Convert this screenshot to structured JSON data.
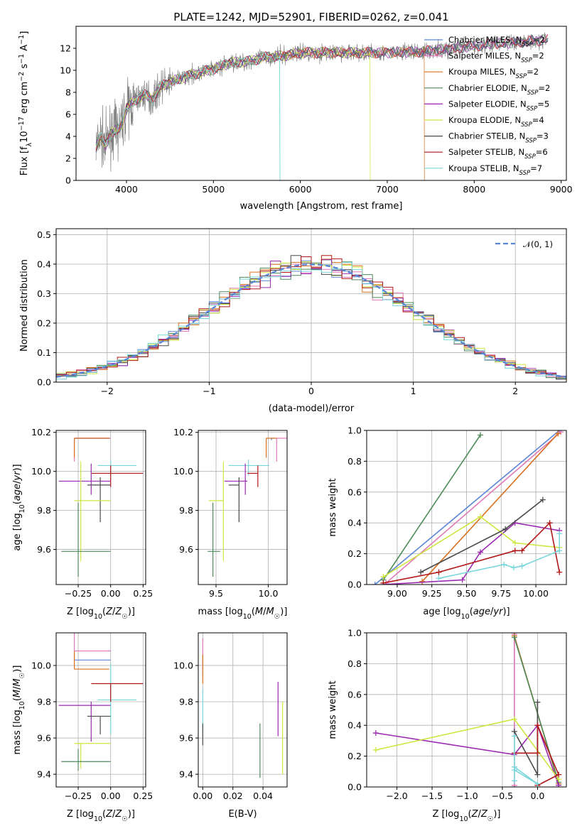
{
  "figure_title": "PLATE=1242, MJD=52901, FIBERID=0262, z=0.041",
  "colors": {
    "Chabrier MILES": "#5b86d6",
    "Salpeter MILES": "#e07ab8",
    "Kroupa MILES": "#d8701e",
    "Chabrier ELODIE": "#4f8a5a",
    "Salpeter ELODIE": "#9a2ab0",
    "Kroupa ELODIE": "#cfe640",
    "Chabrier STELIB": "#4a4a4a",
    "Salpeter STELIB": "#b01818",
    "Kroupa STELIB": "#7ad6da",
    "observed": "#808080",
    "gaussian": "#5b86d6"
  },
  "chart_data": [
    {
      "id": "spectrum",
      "type": "line",
      "title": "PLATE=1242, MJD=52901, FIBERID=0262, z=0.041",
      "xlabel": "wavelength [Angstrom, rest frame]",
      "ylabel": "Flux [f_λ10^{−17} erg cm^{−2} s^{−1} A^{−1}]",
      "xlim": [
        3420,
        9060
      ],
      "ylim": [
        0,
        14
      ],
      "xticks": [
        4000,
        5000,
        6000,
        7000,
        8000,
        9000
      ],
      "yticks": [
        0,
        2,
        4,
        6,
        8,
        10,
        12
      ],
      "grid": false,
      "legend_position": "top-right",
      "legend": [
        {
          "name": "Chabrier MILES, N",
          "sub": "SSP",
          "tail": "=2"
        },
        {
          "name": "Salpeter MILES, N",
          "sub": "SSP",
          "tail": "=2"
        },
        {
          "name": "Kroupa MILES, N",
          "sub": "SSP",
          "tail": "=2"
        },
        {
          "name": "Chabrier ELODIE, N",
          "sub": "SSP",
          "tail": "=2"
        },
        {
          "name": "Salpeter ELODIE, N",
          "sub": "SSP",
          "tail": "=5"
        },
        {
          "name": "Kroupa ELODIE, N",
          "sub": "SSP",
          "tail": "=4"
        },
        {
          "name": "Chabrier STELIB, N",
          "sub": "SSP",
          "tail": "=3"
        },
        {
          "name": "Salpeter STELIB, N",
          "sub": "SSP",
          "tail": "=6"
        },
        {
          "name": "Kroupa STELIB, N",
          "sub": "SSP",
          "tail": "=7"
        }
      ],
      "continuum_knots": {
        "x": [
          3650,
          3700,
          3760,
          3820,
          3900,
          3950,
          4000,
          4100,
          4200,
          4300,
          4400,
          4600,
          4800,
          5000,
          5200,
          5400,
          5600,
          5800,
          6000,
          6300,
          6600,
          7000,
          7400,
          7800,
          8200,
          8600,
          8850
        ],
        "y": [
          3.0,
          4.0,
          3.2,
          4.3,
          4.6,
          5.2,
          6.5,
          7.3,
          7.8,
          7.4,
          8.6,
          9.2,
          9.7,
          10.1,
          10.7,
          10.8,
          11.2,
          11.3,
          11.6,
          11.6,
          11.6,
          11.6,
          11.7,
          12.0,
          12.4,
          12.6,
          12.8
        ]
      },
      "model_cutoffs": [
        {
          "series": "Kroupa STELIB",
          "x": 5760
        },
        {
          "series": "Kroupa ELODIE",
          "x": 6800
        },
        {
          "series": "Kroupa MILES",
          "x": 7420
        }
      ]
    },
    {
      "id": "residuals",
      "type": "histogram",
      "xlabel": "(data-model)/error",
      "ylabel": "Normed distribution",
      "xlim": [
        -2.5,
        2.5
      ],
      "ylim": [
        0,
        0.52
      ],
      "xticks": [
        -2,
        -1,
        0,
        1,
        2
      ],
      "yticks": [
        0.0,
        0.1,
        0.2,
        0.3,
        0.4,
        0.5
      ],
      "grid": true,
      "legend_position": "top-right",
      "legend": "𝒩(0, 1)",
      "bin_width": 0.1,
      "peak_bins": {
        "Chabrier STELIB": [
          -0.3,
          0.49
        ],
        "Salpeter ELODIE": [
          -0.5,
          0.44
        ],
        "Kroupa ELODIE": [
          -0.4,
          0.46
        ],
        "Salpeter ELODIE_2": [
          0.7,
          0.39
        ],
        "Salpeter STELIB": [
          -0.1,
          0.46
        ]
      }
    },
    {
      "id": "age_vs_Z",
      "type": "errorbar",
      "xlabel": "Z [log10(Z/Z☉)]",
      "ylabel": "age  [log10(age/yr)]",
      "xlim": [
        -0.42,
        0.27
      ],
      "ylim": [
        9.42,
        10.21
      ],
      "xticks": [
        -0.25,
        0.0,
        0.25
      ],
      "yticks": [
        9.6,
        9.8,
        10.0,
        10.2
      ],
      "grid": true,
      "points": [
        {
          "series": "Kroupa STELIB",
          "x": 0.0,
          "y": 10.03,
          "xerr": [
            0.1,
            0.2
          ],
          "yerr": [
            0.05,
            0.03
          ]
        },
        {
          "series": "Salpeter STELIB",
          "x": 0.0,
          "y": 9.99,
          "xerr": [
            0.15,
            0.25
          ],
          "yerr": [
            0.07,
            0.04
          ]
        },
        {
          "series": "Salpeter ELODIE",
          "x": -0.15,
          "y": 9.95,
          "xerr": [
            0.25,
            0.15
          ],
          "yerr": [
            0.07,
            0.09
          ]
        },
        {
          "series": "Chabrier STELIB",
          "x": -0.08,
          "y": 9.93,
          "xerr": [
            0.1,
            0.08
          ],
          "yerr": [
            0.19,
            0.04
          ]
        },
        {
          "series": "Kroupa ELODIE",
          "x": -0.23,
          "y": 9.85,
          "xerr": [
            0.05,
            0.23
          ],
          "yerr": [
            0.31,
            0.2
          ]
        },
        {
          "series": "Chabrier ELODIE",
          "x": -0.25,
          "y": 9.59,
          "xerr": [
            0.13,
            0.25
          ],
          "yerr": [
            0.13,
            0.25
          ]
        },
        {
          "series": "Chabrier MILES",
          "x": -0.28,
          "y": 10.17,
          "xerr": [
            0.0,
            0.28
          ],
          "yerr": [
            0.01,
            0.0
          ]
        },
        {
          "series": "Salpeter MILES",
          "x": -0.28,
          "y": 10.17,
          "xerr": [
            0.0,
            0.28
          ],
          "yerr": [
            0.12,
            0.0
          ]
        },
        {
          "series": "Kroupa MILES",
          "x": -0.28,
          "y": 10.17,
          "xerr": [
            0.0,
            0.27
          ],
          "yerr": [
            0.1,
            0.0
          ]
        }
      ]
    },
    {
      "id": "age_vs_mass",
      "type": "errorbar",
      "xlabel": "mass [log10(M/M☉)]",
      "ylabel": "",
      "xlim": [
        9.33,
        10.18
      ],
      "ylim": [
        9.42,
        10.21
      ],
      "xticks": [
        9.5,
        10.0
      ],
      "yticks": [
        9.6,
        9.8,
        10.0,
        10.2
      ],
      "grid": true,
      "points": [
        {
          "series": "Kroupa STELIB",
          "x": 9.81,
          "y": 10.03,
          "xerr": [
            0.19,
            0.2
          ],
          "yerr": [
            0.05,
            0.03
          ]
        },
        {
          "series": "Salpeter STELIB",
          "x": 9.9,
          "y": 9.99,
          "xerr": [
            0.1,
            0.0
          ],
          "yerr": [
            0.07,
            0.04
          ]
        },
        {
          "series": "Salpeter ELODIE",
          "x": 9.78,
          "y": 9.95,
          "xerr": [
            0.2,
            0.02
          ],
          "yerr": [
            0.07,
            0.09
          ]
        },
        {
          "series": "Chabrier STELIB",
          "x": 9.72,
          "y": 9.93,
          "xerr": [
            0.1,
            0.0
          ],
          "yerr": [
            0.19,
            0.04
          ]
        },
        {
          "series": "Kroupa ELODIE",
          "x": 9.57,
          "y": 9.85,
          "xerr": [
            0.14,
            0.0
          ],
          "yerr": [
            0.31,
            0.2
          ]
        },
        {
          "series": "Chabrier ELODIE",
          "x": 9.47,
          "y": 9.59,
          "xerr": [
            0.05,
            0.07
          ],
          "yerr": [
            0.13,
            0.25
          ]
        },
        {
          "series": "Chabrier MILES",
          "x": 10.03,
          "y": 10.17,
          "xerr": [
            0.0,
            0.03
          ],
          "yerr": [
            0.01,
            0.0
          ]
        },
        {
          "series": "Salpeter MILES",
          "x": 10.08,
          "y": 10.17,
          "xerr": [
            0.0,
            0.1
          ],
          "yerr": [
            0.12,
            0.0
          ]
        },
        {
          "series": "Kroupa MILES",
          "x": 9.98,
          "y": 10.17,
          "xerr": [
            0.0,
            0.1
          ],
          "yerr": [
            0.1,
            0.0
          ]
        }
      ]
    },
    {
      "id": "weight_vs_age",
      "type": "line",
      "xlabel": "age  [log10(age/yr)]",
      "ylabel": "mass weight",
      "xlim": [
        8.78,
        10.22
      ],
      "ylim": [
        0,
        1
      ],
      "xticks": [
        9.0,
        9.25,
        9.5,
        9.75,
        10.0
      ],
      "yticks": [
        0.0,
        0.2,
        0.4,
        0.6,
        0.8,
        1.0
      ],
      "grid": true,
      "series": [
        {
          "name": "Chabrier MILES",
          "x": [
            8.84,
            10.17
          ],
          "y": [
            0.0,
            1.0
          ]
        },
        {
          "name": "Salpeter MILES",
          "x": [
            8.92,
            10.18
          ],
          "y": [
            0.01,
            0.99
          ]
        },
        {
          "name": "Kroupa MILES",
          "x": [
            9.18,
            10.16
          ],
          "y": [
            0.02,
            0.98
          ]
        },
        {
          "name": "Chabrier ELODIE",
          "x": [
            8.9,
            9.6
          ],
          "y": [
            0.03,
            0.97
          ]
        },
        {
          "name": "Salpeter ELODIE",
          "x": [
            8.9,
            9.47,
            9.6,
            9.85,
            10.17
          ],
          "y": [
            0.0,
            0.03,
            0.21,
            0.4,
            0.35
          ]
        },
        {
          "name": "Kroupa ELODIE",
          "x": [
            8.9,
            9.6,
            9.85,
            10.17
          ],
          "y": [
            0.05,
            0.44,
            0.27,
            0.24
          ]
        },
        {
          "name": "Chabrier STELIB",
          "x": [
            9.17,
            9.78,
            10.05
          ],
          "y": [
            0.08,
            0.36,
            0.55
          ]
        },
        {
          "name": "Salpeter STELIB",
          "x": [
            8.9,
            9.3,
            9.85,
            9.9,
            10.1,
            10.17
          ],
          "y": [
            0.01,
            0.08,
            0.22,
            0.22,
            0.4,
            0.08
          ]
        },
        {
          "name": "Kroupa STELIB",
          "x": [
            9.3,
            9.77,
            9.84,
            9.9,
            10.17,
            10.17
          ],
          "y": [
            0.04,
            0.13,
            0.11,
            0.12,
            0.22,
            0.33
          ]
        }
      ]
    },
    {
      "id": "mass_vs_Z",
      "type": "errorbar",
      "xlabel": "Z [log10(Z/Z☉)]",
      "ylabel": "mass [log10(M/M☉)]",
      "xlim": [
        -0.42,
        0.27
      ],
      "ylim": [
        9.33,
        10.18
      ],
      "xticks": [
        -0.25,
        0.0,
        0.25
      ],
      "yticks": [
        9.4,
        9.6,
        9.8,
        10.0
      ],
      "grid": true,
      "points": [
        {
          "series": "Kroupa STELIB",
          "x": 0.0,
          "y": 9.81,
          "xerr": [
            0.1,
            0.2
          ],
          "yerr": [
            0.19,
            0.2
          ]
        },
        {
          "series": "Salpeter STELIB",
          "x": 0.0,
          "y": 9.9,
          "xerr": [
            0.15,
            0.25
          ],
          "yerr": [
            0.1,
            0.0
          ]
        },
        {
          "series": "Salpeter ELODIE",
          "x": -0.15,
          "y": 9.78,
          "xerr": [
            0.25,
            0.15
          ],
          "yerr": [
            0.2,
            0.02
          ]
        },
        {
          "series": "Chabrier STELIB",
          "x": -0.08,
          "y": 9.72,
          "xerr": [
            0.1,
            0.08
          ],
          "yerr": [
            0.1,
            0.0
          ]
        },
        {
          "series": "Kroupa ELODIE",
          "x": -0.23,
          "y": 9.57,
          "xerr": [
            0.05,
            0.23
          ],
          "yerr": [
            0.14,
            0.0
          ]
        },
        {
          "series": "Chabrier ELODIE",
          "x": -0.25,
          "y": 9.47,
          "xerr": [
            0.13,
            0.25
          ],
          "yerr": [
            0.05,
            0.07
          ]
        },
        {
          "series": "Chabrier MILES",
          "x": -0.28,
          "y": 10.03,
          "xerr": [
            0.0,
            0.28
          ],
          "yerr": [
            0.0,
            0.03
          ]
        },
        {
          "series": "Salpeter MILES",
          "x": -0.28,
          "y": 10.08,
          "xerr": [
            0.0,
            0.28
          ],
          "yerr": [
            0.0,
            0.1
          ]
        },
        {
          "series": "Kroupa MILES",
          "x": -0.28,
          "y": 9.98,
          "xerr": [
            0.0,
            0.27
          ],
          "yerr": [
            0.0,
            0.1
          ]
        }
      ]
    },
    {
      "id": "mass_vs_ebv",
      "type": "errorbar",
      "xlabel": "E(B-V)",
      "ylabel": "",
      "xlim": [
        -0.003,
        0.056
      ],
      "ylim": [
        9.33,
        10.18
      ],
      "xticks": [
        0.0,
        0.02,
        0.04
      ],
      "yticks": [
        9.4,
        9.6,
        9.8,
        10.0
      ],
      "grid": true,
      "points": [
        {
          "series": "Salpeter ELODIE",
          "x": 0.05,
          "y": 9.78,
          "yerr": [
            0.17,
            0.13
          ]
        },
        {
          "series": "Kroupa ELODIE",
          "x": 0.053,
          "y": 9.6,
          "yerr": [
            0.2,
            0.2
          ]
        },
        {
          "series": "Chabrier ELODIE",
          "x": 0.038,
          "y": 9.53,
          "yerr": [
            0.15,
            0.15
          ]
        },
        {
          "series": "Kroupa STELIB",
          "x": 0.0,
          "y": 9.75,
          "yerr": [
            0.13,
            0.12
          ]
        },
        {
          "series": "Chabrier STELIB",
          "x": 0.0,
          "y": 9.63,
          "yerr": [
            0.07,
            0.05
          ]
        },
        {
          "series": "Salpeter MILES",
          "x": 0.0,
          "y": 10.05,
          "yerr": [
            0.1,
            0.1
          ]
        },
        {
          "series": "Kroupa MILES",
          "x": 0.0,
          "y": 9.98,
          "yerr": [
            0.08,
            0.08
          ]
        }
      ]
    },
    {
      "id": "weight_vs_Z",
      "type": "line",
      "xlabel": "Z [log10(Z/Z☉)]",
      "ylabel": "mass weight",
      "xlim": [
        -2.43,
        0.41
      ],
      "ylim": [
        0,
        1
      ],
      "xticks": [
        -2.0,
        -1.5,
        -1.0,
        -0.5,
        0.0
      ],
      "yticks": [
        0.0,
        0.2,
        0.4,
        0.6,
        0.8,
        1.0
      ],
      "grid": true,
      "series": [
        {
          "name": "Chabrier MILES",
          "x": [
            -0.33,
            -0.33
          ],
          "y": [
            0.0,
            1.0
          ]
        },
        {
          "name": "Salpeter MILES",
          "x": [
            -0.33,
            -0.33
          ],
          "y": [
            0.01,
            0.99
          ]
        },
        {
          "name": "Kroupa MILES",
          "x": [
            -0.33,
            0.3
          ],
          "y": [
            0.98,
            0.02
          ]
        },
        {
          "name": "Chabrier ELODIE",
          "x": [
            -0.33,
            0.3
          ],
          "y": [
            0.97,
            0.03
          ]
        },
        {
          "name": "Salpeter ELODIE",
          "x": [
            -2.3,
            -0.33,
            0.0,
            0.3
          ],
          "y": [
            0.35,
            0.21,
            0.4,
            0.01
          ]
        },
        {
          "name": "Kroupa ELODIE",
          "x": [
            -2.3,
            -0.33,
            0.3
          ],
          "y": [
            0.24,
            0.44,
            0.05
          ]
        },
        {
          "name": "Chabrier STELIB",
          "x": [
            -0.33,
            0.0,
            0.0
          ],
          "y": [
            0.36,
            0.08,
            0.55
          ]
        },
        {
          "name": "Salpeter STELIB",
          "x": [
            -0.33,
            0.0,
            0.0,
            0.3,
            0.0
          ],
          "y": [
            0.22,
            0.22,
            0.4,
            0.08,
            0.01
          ]
        },
        {
          "name": "Kroupa STELIB",
          "x": [
            -0.33,
            -0.33,
            0.0,
            -0.33,
            -0.33
          ],
          "y": [
            0.04,
            0.13,
            0.02,
            0.11,
            0.33
          ]
        }
      ]
    }
  ]
}
